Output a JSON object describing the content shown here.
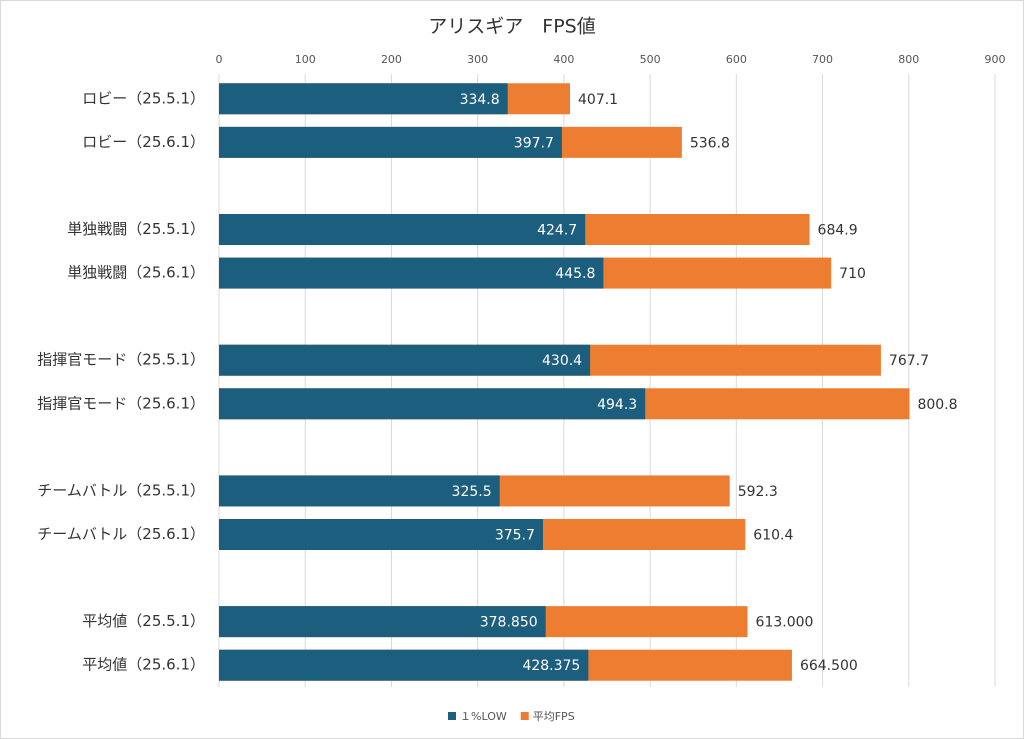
{
  "chart_data": {
    "type": "bar",
    "orientation": "horizontal",
    "title": "アリスギア　FPS値",
    "categories": [
      "ロビー（25.5.1）",
      "ロビー（25.6.1）",
      null,
      "単独戦闘（25.5.1）",
      "単独戦闘（25.6.1）",
      null,
      "指揮官モード（25.5.1）",
      "指揮官モード（25.6.1）",
      null,
      "チームバトル（25.5.1）",
      "チームバトル（25.6.1）",
      null,
      "平均値（25.5.1）",
      "平均値（25.6.1）"
    ],
    "series": [
      {
        "name": "１%LOW",
        "color": "#1b5e7e",
        "values": [
          334.8,
          397.7,
          null,
          424.7,
          445.8,
          null,
          430.4,
          494.3,
          null,
          325.5,
          375.7,
          null,
          378.85,
          428.375
        ],
        "value_labels": [
          "334.8",
          "397.7",
          null,
          "424.7",
          "445.8",
          null,
          "430.4",
          "494.3",
          null,
          "325.5",
          "375.7",
          null,
          "378.850",
          "428.375"
        ]
      },
      {
        "name": "平均FPS",
        "color": "#ed7d31",
        "values": [
          407.1,
          536.8,
          null,
          684.9,
          710,
          null,
          767.7,
          800.8,
          null,
          592.3,
          610.4,
          null,
          613,
          664.5
        ],
        "value_labels": [
          "407.1",
          "536.8",
          null,
          "684.9",
          "710",
          null,
          "767.7",
          "800.8",
          null,
          "592.3",
          "610.4",
          null,
          "613.000",
          "664.500"
        ]
      }
    ],
    "xlim": [
      0,
      900
    ],
    "xticks": [
      0,
      100,
      200,
      300,
      400,
      500,
      600,
      700,
      800,
      900
    ],
    "grid": true,
    "legend": "bottom"
  }
}
